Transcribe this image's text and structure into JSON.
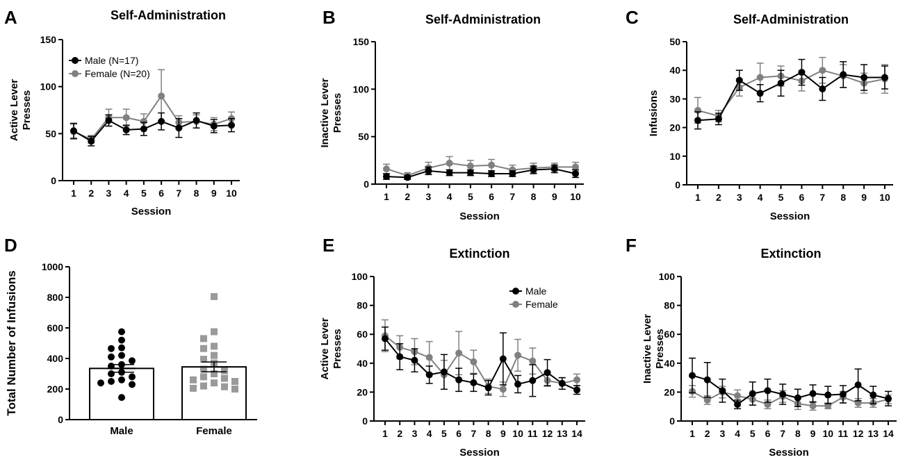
{
  "colors": {
    "male": "#000000",
    "female": "#808080"
  },
  "chart_data": [
    {
      "panel": "A",
      "type": "line",
      "title": "Self-Administration",
      "xlabel": "Session",
      "ylabel": [
        "Active Lever",
        "Presses"
      ],
      "x": [
        1,
        2,
        3,
        4,
        5,
        6,
        7,
        8,
        9,
        10
      ],
      "ylim": [
        0,
        150
      ],
      "yticks": [
        0,
        50,
        100,
        150
      ],
      "legend": "top-left",
      "series": [
        {
          "name": "Male (N=17)",
          "key": "male",
          "values": [
            53,
            42,
            64,
            54,
            55,
            63,
            56,
            64,
            58,
            59
          ],
          "err": [
            8,
            5,
            6,
            5,
            7,
            9,
            10,
            8,
            7,
            7
          ]
        },
        {
          "name": "Female (N=20)",
          "key": "female",
          "values": [
            52,
            44,
            67,
            67,
            63,
            90,
            62,
            63,
            60,
            66
          ],
          "err": [
            8,
            4,
            9,
            9,
            8,
            28,
            7,
            7,
            7,
            7
          ]
        }
      ]
    },
    {
      "panel": "B",
      "type": "line",
      "title": "Self-Administration",
      "xlabel": "Session",
      "ylabel": [
        "Inactive Lever",
        "Presses"
      ],
      "x": [
        1,
        2,
        3,
        4,
        5,
        6,
        7,
        8,
        9,
        10
      ],
      "ylim": [
        0,
        150
      ],
      "yticks": [
        0,
        50,
        100,
        150
      ],
      "series": [
        {
          "name": "",
          "key": "male",
          "values": [
            8,
            7,
            14,
            12,
            12,
            11,
            11,
            15,
            16,
            11
          ],
          "err": [
            3,
            2,
            4,
            3,
            3,
            3,
            3,
            4,
            4,
            4
          ]
        },
        {
          "name": "",
          "key": "female",
          "values": [
            16,
            9,
            17,
            22,
            19,
            20,
            15,
            17,
            18,
            18
          ],
          "err": [
            5,
            3,
            6,
            7,
            6,
            6,
            5,
            5,
            4,
            5
          ]
        }
      ]
    },
    {
      "panel": "C",
      "type": "line",
      "title": "Self-Administration",
      "xlabel": "Session",
      "ylabel": [
        "Infusions"
      ],
      "x": [
        1,
        2,
        3,
        4,
        5,
        6,
        7,
        8,
        9,
        10
      ],
      "ylim": [
        0,
        50
      ],
      "yticks": [
        0,
        10,
        20,
        30,
        40,
        50
      ],
      "series": [
        {
          "name": "",
          "key": "male",
          "values": [
            22.5,
            23,
            36.5,
            32,
            35.5,
            39.3,
            33.5,
            38.5,
            37.5,
            37.5
          ],
          "err": [
            3,
            2,
            3.5,
            3,
            4.5,
            4.5,
            4,
            4.5,
            4.5,
            4
          ]
        },
        {
          "name": "",
          "key": "female",
          "values": [
            26,
            24,
            34,
            37.5,
            38,
            36.3,
            40,
            38,
            35.5,
            37
          ],
          "err": [
            4.5,
            2,
            3,
            5,
            3.5,
            3.5,
            4.5,
            4,
            3.5,
            5
          ]
        }
      ]
    },
    {
      "panel": "D",
      "type": "bar",
      "title": "",
      "xlabel": "",
      "ylabel": [
        "Total Number of Infusions"
      ],
      "categories": [
        "Male",
        "Female"
      ],
      "ylim": [
        0,
        1000
      ],
      "yticks": [
        0,
        200,
        400,
        600,
        800,
        1000
      ],
      "values": [
        335,
        345
      ],
      "err": [
        25,
        32
      ],
      "points": [
        [
          575,
          520,
          470,
          465,
          420,
          410,
          385,
          360,
          350,
          310,
          300,
          280,
          260,
          250,
          240,
          230,
          145
        ],
        [
          805,
          575,
          530,
          480,
          465,
          420,
          395,
          370,
          330,
          300,
          280,
          270,
          260,
          240,
          220,
          215,
          205,
          200,
          320,
          250
        ]
      ]
    },
    {
      "panel": "E",
      "type": "line",
      "title": "Extinction",
      "xlabel": "Session",
      "ylabel": [
        "Active Lever",
        "Presses"
      ],
      "x": [
        1,
        2,
        3,
        4,
        5,
        6,
        7,
        8,
        9,
        10,
        11,
        12,
        13,
        14
      ],
      "ylim": [
        0,
        100
      ],
      "yticks": [
        0,
        20,
        40,
        60,
        80,
        100
      ],
      "legend": "top-right",
      "series": [
        {
          "name": "Male",
          "key": "male",
          "values": [
            57,
            44.5,
            42,
            32,
            34,
            28.5,
            26.5,
            23,
            43,
            25.5,
            28,
            33.5,
            26,
            21.5
          ],
          "err": [
            8,
            9,
            8,
            6,
            12,
            8,
            6,
            5,
            18,
            6,
            11,
            9,
            4,
            3
          ]
        },
        {
          "name": "Female",
          "key": "female",
          "values": [
            59,
            51,
            48,
            44,
            32,
            47,
            41,
            24,
            22,
            45.5,
            41.5,
            28,
            26,
            28.5
          ],
          "err": [
            11,
            8,
            9,
            11,
            10,
            15,
            8,
            5,
            5,
            11,
            9,
            4,
            4,
            4
          ]
        }
      ]
    },
    {
      "panel": "F",
      "type": "line",
      "title": "Extinction",
      "xlabel": "Session",
      "ylabel": [
        "Inactive Lever",
        "Presses"
      ],
      "x": [
        1,
        2,
        3,
        4,
        5,
        6,
        7,
        8,
        9,
        10,
        11,
        12,
        13,
        14
      ],
      "ylim": [
        0,
        100
      ],
      "yticks": [
        0,
        20,
        40,
        60,
        80,
        100
      ],
      "series": [
        {
          "name": "",
          "key": "male",
          "values": [
            31.5,
            28.5,
            21,
            11.5,
            19,
            21,
            18.5,
            16,
            19,
            18,
            18.5,
            25,
            18,
            15.5
          ],
          "err": [
            12,
            12,
            8,
            3,
            8,
            8,
            7,
            6,
            6,
            6,
            6,
            11,
            6,
            5
          ]
        },
        {
          "name": "",
          "key": "female",
          "values": [
            20.5,
            14.5,
            20,
            17.5,
            15,
            11.5,
            17,
            12,
            10.5,
            10.5,
            16.5,
            12.5,
            12.5,
            15
          ],
          "err": [
            4,
            3,
            4,
            4,
            4,
            3,
            4,
            4,
            3,
            2,
            4,
            3,
            3,
            3
          ]
        }
      ]
    }
  ]
}
